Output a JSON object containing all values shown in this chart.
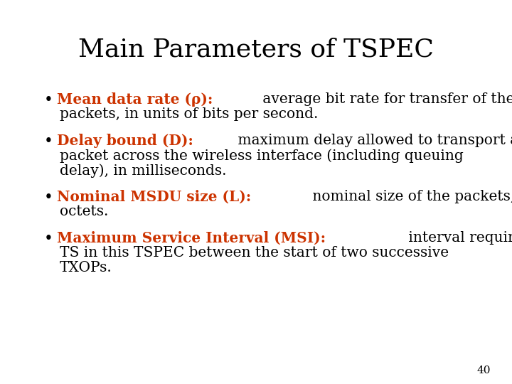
{
  "title": "Main Parameters of TSPEC",
  "title_fontsize": 26,
  "title_color": "#000000",
  "background_color": "#ffffff",
  "bullet_color": "#000000",
  "highlight_color": "#cc3300",
  "body_fontsize": 14.5,
  "page_number": "40",
  "bullets": [
    {
      "highlight": "Mean data rate (ρ):",
      "line1_normal": " average bit rate for transfer of the",
      "line2": "packets, in units of bits per second."
    },
    {
      "highlight": "Delay bound (D):",
      "line1_normal": " maximum delay allowed to transport a",
      "line2": "packet across the wireless interface (including queuing",
      "line3": "delay), in milliseconds."
    },
    {
      "highlight": "Nominal MSDU size (L):",
      "line1_normal": " nominal size of the packets, in",
      "line2": "octets."
    },
    {
      "highlight": "Maximum Service Interval (MSI):",
      "line1_normal": " interval required by",
      "line2": "TS in this TSPEC between the start of two successive",
      "line3": "TXOPs."
    }
  ]
}
